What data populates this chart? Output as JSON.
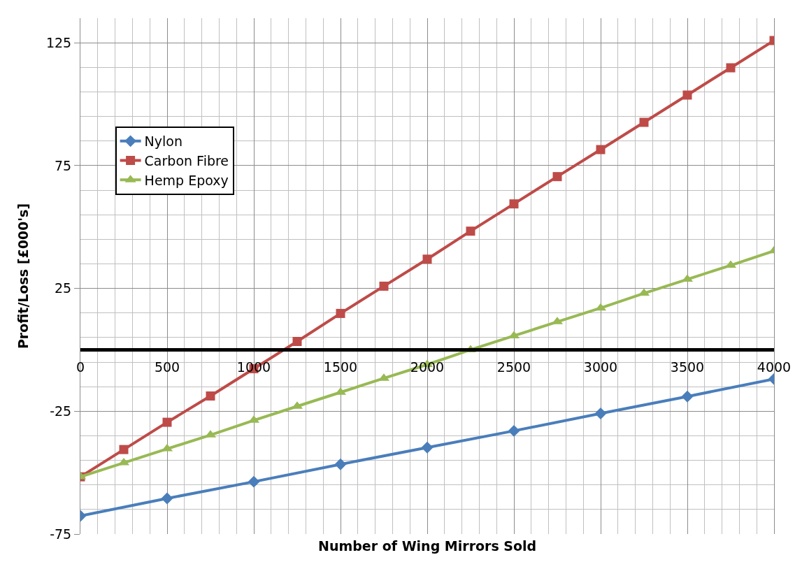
{
  "chart_data": {
    "type": "line",
    "xlabel": "Number of Wing Mirrors Sold",
    "ylabel": "Profit/Loss [£000's]",
    "x": [
      0,
      250,
      500,
      750,
      1000,
      1250,
      1500,
      1750,
      2000,
      2250,
      2500,
      2750,
      3000,
      3250,
      3500,
      3750,
      4000
    ],
    "series": [
      {
        "name": "Nylon",
        "color": "#4a7ebb",
        "marker": "diamond",
        "x": [
          0,
          500,
          1000,
          1500,
          2000,
          2500,
          3000,
          3500,
          4000
        ],
        "values": [
          -67.6,
          -60.5,
          -53.7,
          -46.6,
          -39.8,
          -33.0,
          -25.9,
          -19.0,
          -11.9
        ]
      },
      {
        "name": "Carbon Fibre",
        "color": "#be4b48",
        "marker": "square",
        "values": [
          -51.7,
          -40.6,
          -29.5,
          -18.8,
          -7.7,
          3.4,
          14.8,
          25.9,
          36.9,
          48.3,
          59.4,
          70.5,
          81.5,
          92.6,
          103.7,
          114.8,
          125.9
        ]
      },
      {
        "name": "Hemp Epoxy",
        "color": "#98b954",
        "marker": "triangle",
        "values": [
          -51.7,
          -46.0,
          -40.3,
          -34.7,
          -28.7,
          -23.0,
          -17.3,
          -11.6,
          -6.0,
          0,
          5.7,
          11.4,
          17.0,
          23.0,
          28.7,
          34.4,
          40.3
        ]
      }
    ],
    "xlim": [
      0,
      4000
    ],
    "xticks": [
      0,
      500,
      1000,
      1500,
      2000,
      2500,
      3000,
      3500,
      4000
    ],
    "ylim": [
      -75,
      135
    ],
    "yticks": [
      -75,
      -25,
      25,
      75,
      125
    ],
    "grid": true,
    "legend": "top left",
    "line_style": "solid"
  }
}
